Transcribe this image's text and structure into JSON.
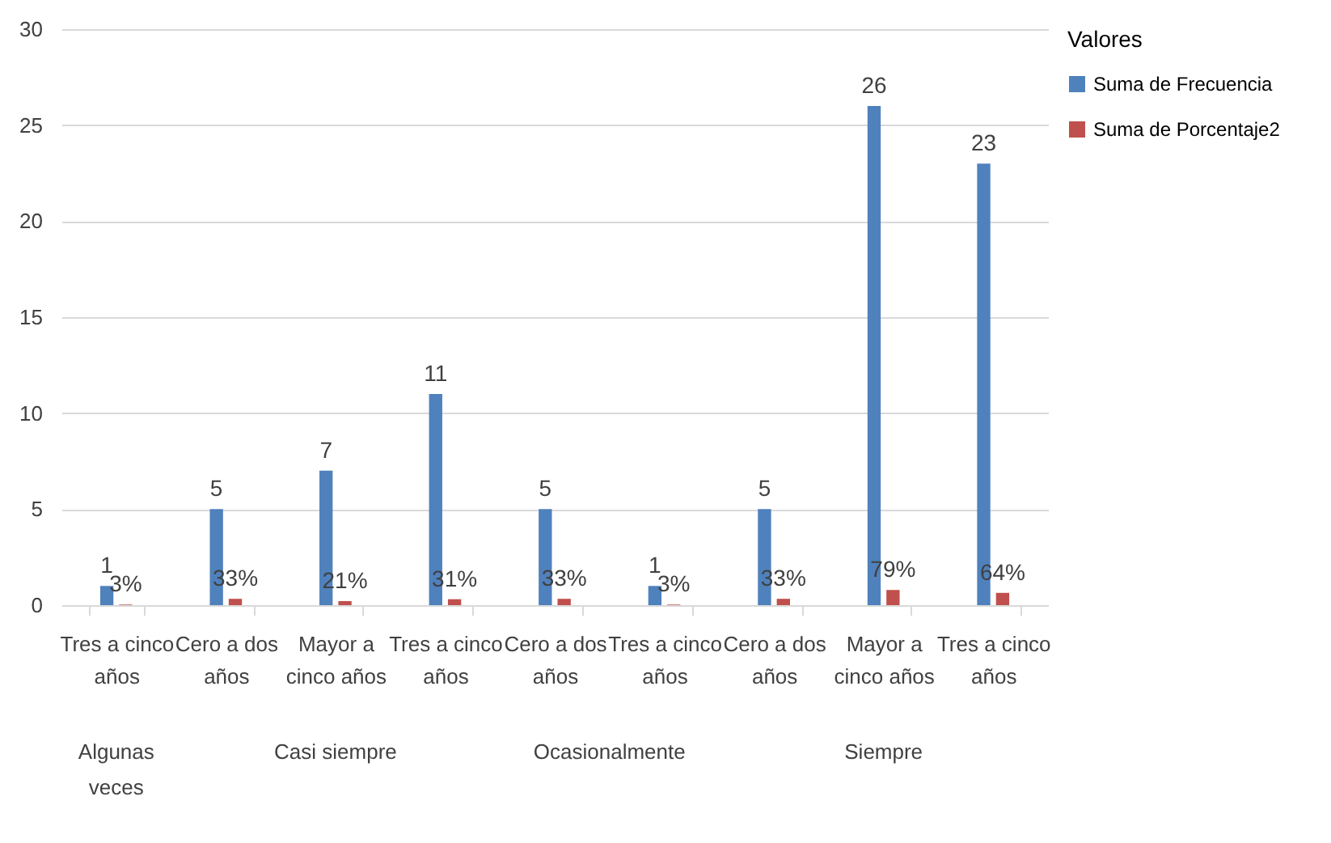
{
  "chart_data": {
    "type": "bar",
    "categories": [
      "Tres a cinco años",
      "Cero a dos años",
      "Mayor a cinco años",
      "Tres a cinco años",
      "Cero a dos años",
      "Tres a cinco años",
      "Cero a dos años",
      "Mayor a cinco años",
      "Tres a cinco años"
    ],
    "series": [
      {
        "name": "Suma de Frecuencia",
        "color": "#4f81bd",
        "values": [
          1,
          5,
          7,
          11,
          5,
          1,
          5,
          26,
          23
        ],
        "value_labels": [
          "1",
          "5",
          "7",
          "11",
          "5",
          "1",
          "5",
          "26",
          "23"
        ]
      },
      {
        "name": "Suma de Porcentaje2",
        "color": "#c0504d",
        "values": [
          0.03,
          0.33,
          0.21,
          0.31,
          0.33,
          0.03,
          0.33,
          0.79,
          0.64
        ],
        "value_labels": [
          "3%",
          "33%",
          "21%",
          "31%",
          "33%",
          "3%",
          "33%",
          "79%",
          "64%"
        ]
      }
    ],
    "annotations": [
      "Algunas veces",
      "Casi siempre",
      "Ocasionalmente",
      "Siempre"
    ],
    "legend_title": "Valores",
    "legend": "right",
    "ylim": [
      0,
      30
    ],
    "yticks": [
      0,
      5,
      10,
      15,
      20,
      25,
      30
    ],
    "grid": "y"
  }
}
